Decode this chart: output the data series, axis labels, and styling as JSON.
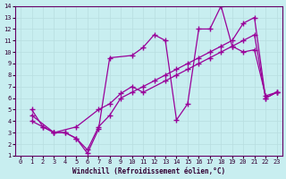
{
  "title": "",
  "xlabel": "Windchill (Refroidissement éolien,°C)",
  "ylabel": "",
  "bg_color": "#c8eef0",
  "grid_color": "#b8dde0",
  "line_color": "#990099",
  "xlim": [
    -0.5,
    23.5
  ],
  "ylim": [
    1,
    14
  ],
  "xticks": [
    0,
    1,
    2,
    3,
    4,
    5,
    6,
    7,
    8,
    9,
    10,
    11,
    12,
    13,
    14,
    15,
    16,
    17,
    18,
    19,
    20,
    21,
    22,
    23
  ],
  "yticks": [
    1,
    2,
    3,
    4,
    5,
    6,
    7,
    8,
    9,
    10,
    11,
    12,
    13,
    14
  ],
  "line1_x": [
    1,
    2,
    3,
    4,
    5,
    6,
    7,
    8,
    10,
    11,
    12,
    13,
    14,
    15,
    16,
    17,
    18,
    19,
    20,
    21,
    22,
    23
  ],
  "line1_y": [
    5,
    3.5,
    3,
    3,
    2.5,
    1.2,
    3.3,
    9.5,
    9.7,
    10.4,
    11.5,
    11,
    4.1,
    5.5,
    12,
    12,
    14,
    10.5,
    10,
    10.2,
    6.2,
    6.5
  ],
  "line2_x": [
    1,
    2,
    3,
    5,
    7,
    8,
    9,
    10,
    11,
    13,
    14,
    15,
    16,
    17,
    18,
    19,
    20,
    21,
    22,
    23
  ],
  "line2_y": [
    4,
    3.5,
    3,
    3.5,
    5,
    5.5,
    6.4,
    7,
    6.5,
    7.5,
    8,
    8.5,
    9,
    9.5,
    10,
    10.5,
    11,
    11.5,
    6,
    6.5
  ],
  "line3_x": [
    1,
    3,
    4,
    5,
    6,
    7,
    8,
    9,
    10,
    11,
    12,
    13,
    14,
    15,
    16,
    17,
    18,
    19,
    20,
    21,
    22,
    23
  ],
  "line3_y": [
    4.5,
    3,
    3,
    2.5,
    1.5,
    3.5,
    4.5,
    6,
    6.5,
    7,
    7.5,
    8,
    8.5,
    9,
    9.5,
    10,
    10.5,
    11,
    12.5,
    13,
    6,
    6.5
  ]
}
